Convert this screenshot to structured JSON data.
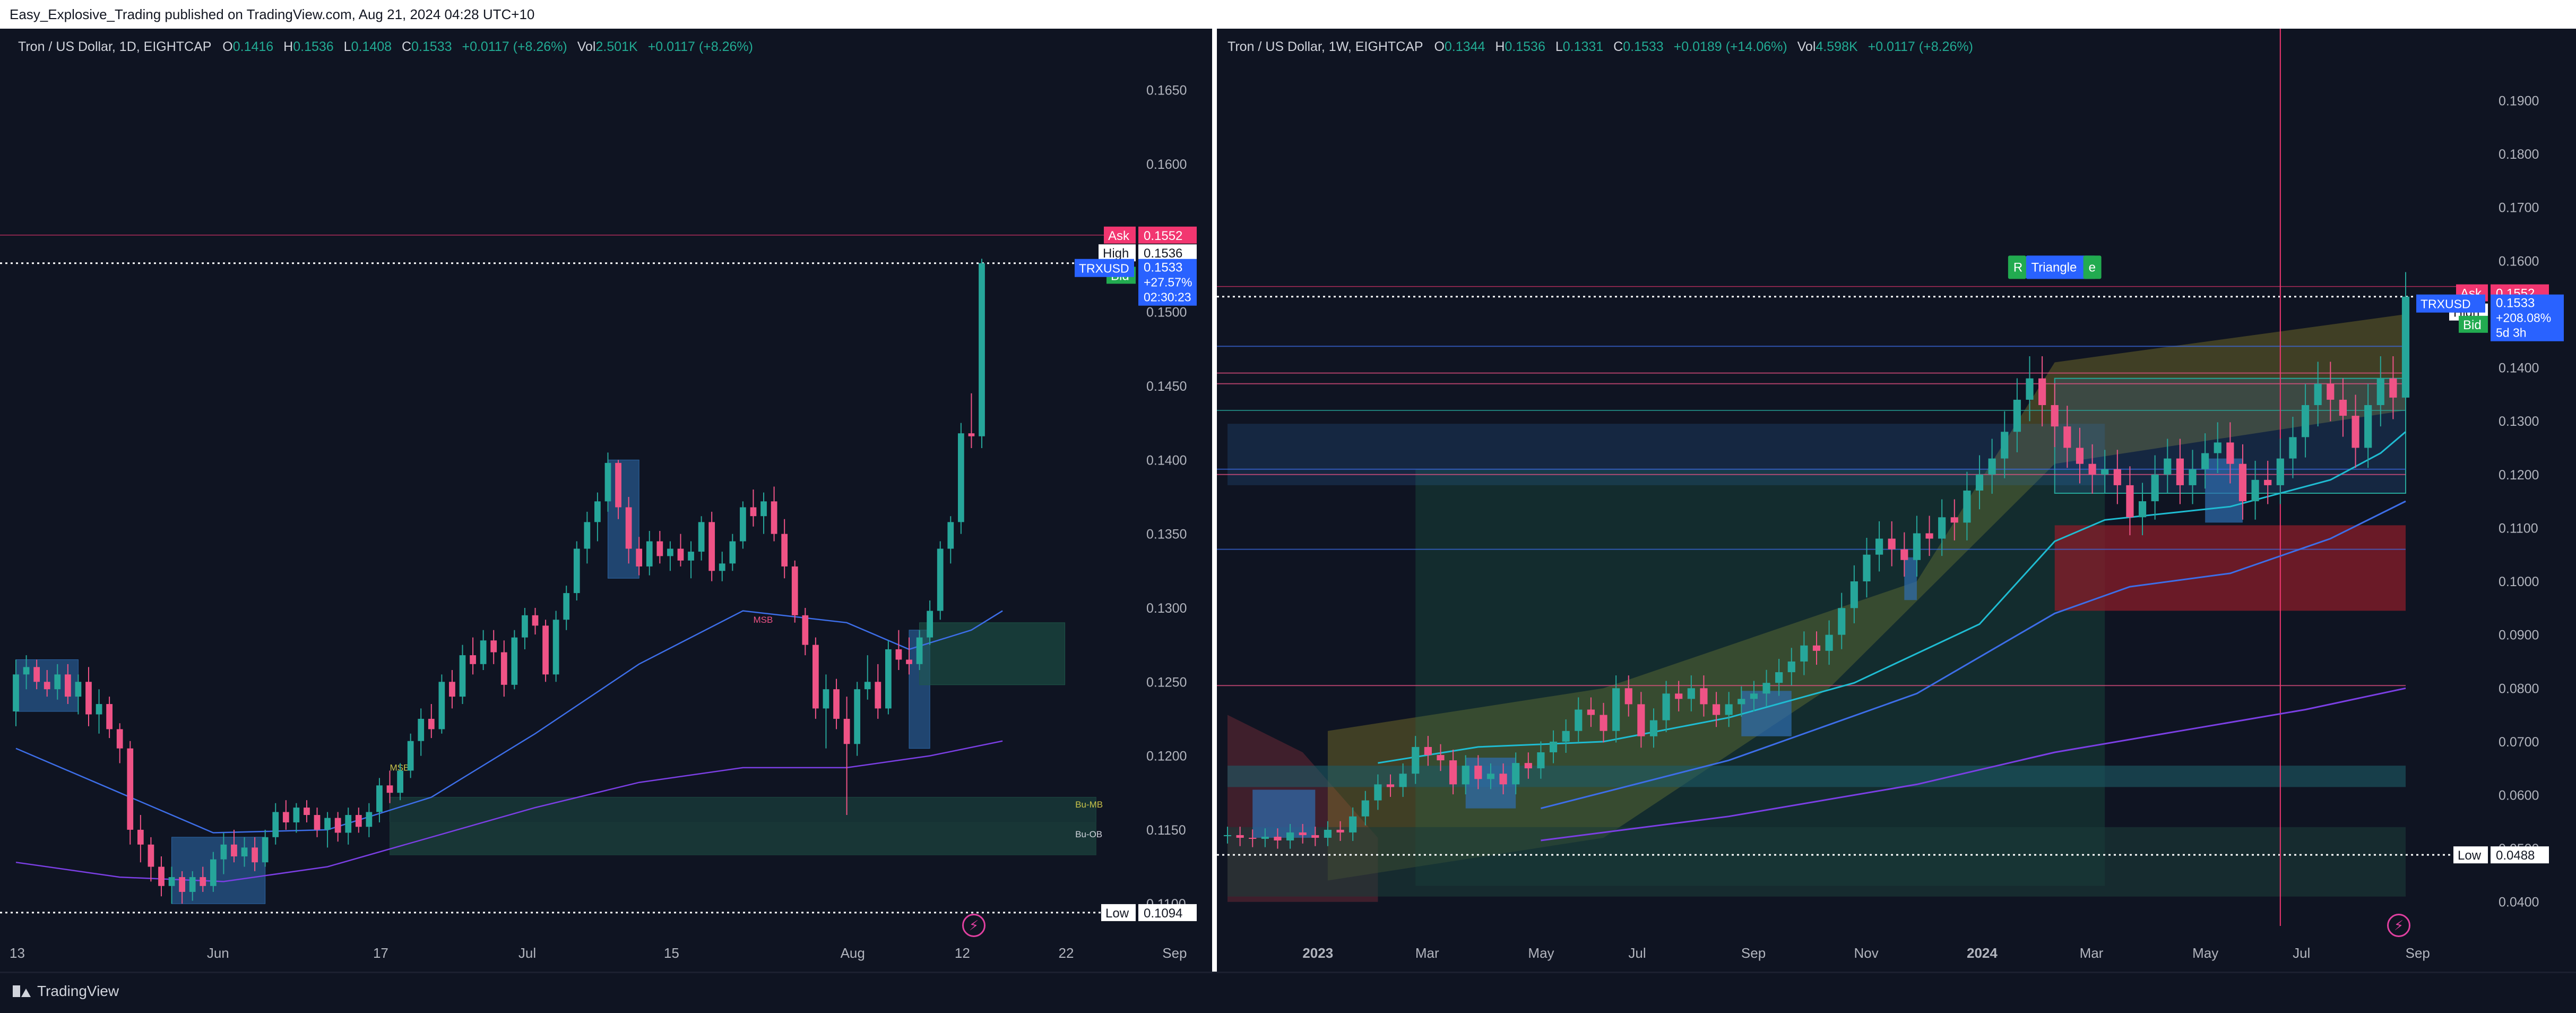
{
  "header": {
    "publisher_line": "Easy_Explosive_Trading published on TradingView.com, Aug 21, 2024 04:28 UTC+10"
  },
  "footer": {
    "brand": "TradingView"
  },
  "colors": {
    "background": "#0f1422",
    "up": "#26a69a",
    "down": "#ef5386",
    "ask": "#f23670",
    "bid": "#22ab50",
    "last": "#2962ff",
    "ema_fast": "#1fbcd2",
    "ema_mid": "#3d6ee8",
    "ema_slow": "#7b3fe4"
  },
  "chart_data": [
    {
      "type": "candlestick",
      "title": "Tron / US Dollar, 1D, EIGHTCAP",
      "legend": {
        "o_label": "O",
        "o": "0.1416",
        "h_label": "H",
        "h": "0.1536",
        "l_label": "L",
        "l": "0.1408",
        "c_label": "C",
        "c": "0.1533",
        "chg": "+0.0117 (+8.26%)",
        "vol_label": "Vol",
        "vol": "2.501K",
        "vol_chg": "+0.0117 (+8.26%)"
      },
      "ylim": [
        0.1085,
        0.167
      ],
      "y_ticks": [
        "0.1650",
        "0.1600",
        "0.1550",
        "0.1500",
        "0.1450",
        "0.1400",
        "0.1350",
        "0.1300",
        "0.1250",
        "0.1200",
        "0.1150",
        "0.1100"
      ],
      "x_ticks": [
        "13",
        "Jun",
        "17",
        "Jul",
        "15",
        "Aug",
        "12",
        "22",
        "Sep"
      ],
      "x_tick_days": [
        0,
        19,
        35,
        49,
        63,
        80,
        91,
        101,
        111
      ],
      "x_start_date": "May 13",
      "candles": [
        [
          0.123,
          0.1265,
          0.122,
          0.1255
        ],
        [
          0.1255,
          0.1268,
          0.1245,
          0.126
        ],
        [
          0.126,
          0.1265,
          0.1245,
          0.125
        ],
        [
          0.125,
          0.1258,
          0.124,
          0.1245
        ],
        [
          0.1245,
          0.1262,
          0.1238,
          0.1255
        ],
        [
          0.1255,
          0.1262,
          0.1235,
          0.124
        ],
        [
          0.124,
          0.1255,
          0.1228,
          0.125
        ],
        [
          0.125,
          0.126,
          0.122,
          0.1228
        ],
        [
          0.1228,
          0.1245,
          0.1215,
          0.1235
        ],
        [
          0.1235,
          0.124,
          0.1212,
          0.1218
        ],
        [
          0.1218,
          0.1222,
          0.1195,
          0.1205
        ],
        [
          0.1205,
          0.121,
          0.114,
          0.115
        ],
        [
          0.115,
          0.116,
          0.1128,
          0.114
        ],
        [
          0.114,
          0.1145,
          0.1115,
          0.1125
        ],
        [
          0.1125,
          0.1132,
          0.1105,
          0.1112
        ],
        [
          0.1112,
          0.1125,
          0.11,
          0.1118
        ],
        [
          0.1118,
          0.1122,
          0.11,
          0.1108
        ],
        [
          0.1108,
          0.1122,
          0.1102,
          0.1118
        ],
        [
          0.1118,
          0.1125,
          0.1108,
          0.1112
        ],
        [
          0.1112,
          0.1135,
          0.1108,
          0.113
        ],
        [
          0.113,
          0.1148,
          0.112,
          0.114
        ],
        [
          0.114,
          0.115,
          0.1128,
          0.1132
        ],
        [
          0.1132,
          0.1145,
          0.1125,
          0.1138
        ],
        [
          0.1138,
          0.1145,
          0.1122,
          0.1128
        ],
        [
          0.1128,
          0.115,
          0.1125,
          0.1145
        ],
        [
          0.1145,
          0.1168,
          0.114,
          0.1162
        ],
        [
          0.1162,
          0.117,
          0.115,
          0.1155
        ],
        [
          0.1155,
          0.1168,
          0.1148,
          0.1165
        ],
        [
          0.1165,
          0.117,
          0.1155,
          0.116
        ],
        [
          0.116,
          0.1165,
          0.1145,
          0.115
        ],
        [
          0.115,
          0.1162,
          0.1138,
          0.1158
        ],
        [
          0.1158,
          0.1162,
          0.1142,
          0.1148
        ],
        [
          0.1148,
          0.1165,
          0.114,
          0.116
        ],
        [
          0.116,
          0.1165,
          0.1148,
          0.1152
        ],
        [
          0.1152,
          0.1168,
          0.1145,
          0.1162
        ],
        [
          0.1162,
          0.1185,
          0.1155,
          0.118
        ],
        [
          0.118,
          0.119,
          0.1168,
          0.1175
        ],
        [
          0.1175,
          0.1195,
          0.117,
          0.119
        ],
        [
          0.119,
          0.1215,
          0.1185,
          0.121
        ],
        [
          0.121,
          0.1232,
          0.12,
          0.1225
        ],
        [
          0.1225,
          0.1235,
          0.1212,
          0.1218
        ],
        [
          0.1218,
          0.1255,
          0.1215,
          0.125
        ],
        [
          0.125,
          0.1258,
          0.1232,
          0.124
        ],
        [
          0.124,
          0.1275,
          0.1235,
          0.1268
        ],
        [
          0.1268,
          0.128,
          0.1255,
          0.1262
        ],
        [
          0.1262,
          0.1285,
          0.1258,
          0.1278
        ],
        [
          0.1278,
          0.1285,
          0.1262,
          0.127
        ],
        [
          0.127,
          0.1278,
          0.124,
          0.1248
        ],
        [
          0.1248,
          0.1285,
          0.1245,
          0.128
        ],
        [
          0.128,
          0.13,
          0.1272,
          0.1295
        ],
        [
          0.1295,
          0.13,
          0.1282,
          0.1288
        ],
        [
          0.1288,
          0.1292,
          0.125,
          0.1255
        ],
        [
          0.1255,
          0.1298,
          0.125,
          0.1292
        ],
        [
          0.1292,
          0.1315,
          0.1285,
          0.131
        ],
        [
          0.131,
          0.1345,
          0.1305,
          0.134
        ],
        [
          0.134,
          0.1365,
          0.133,
          0.1358
        ],
        [
          0.1358,
          0.1378,
          0.1345,
          0.1372
        ],
        [
          0.1372,
          0.1405,
          0.1365,
          0.1398
        ],
        [
          0.1398,
          0.14,
          0.136,
          0.1368
        ],
        [
          0.1368,
          0.1375,
          0.133,
          0.134
        ],
        [
          0.134,
          0.1348,
          0.1322,
          0.1328
        ],
        [
          0.1328,
          0.1352,
          0.1322,
          0.1345
        ],
        [
          0.1345,
          0.1352,
          0.133,
          0.1335
        ],
        [
          0.1335,
          0.1345,
          0.1325,
          0.134
        ],
        [
          0.134,
          0.135,
          0.1328,
          0.1332
        ],
        [
          0.1332,
          0.1345,
          0.132,
          0.1338
        ],
        [
          0.1338,
          0.1362,
          0.1332,
          0.1358
        ],
        [
          0.1358,
          0.1365,
          0.1318,
          0.1325
        ],
        [
          0.1325,
          0.1338,
          0.1318,
          0.133
        ],
        [
          0.133,
          0.135,
          0.1325,
          0.1345
        ],
        [
          0.1345,
          0.1372,
          0.134,
          0.1368
        ],
        [
          0.1368,
          0.138,
          0.1355,
          0.1362
        ],
        [
          0.1362,
          0.1378,
          0.135,
          0.1372
        ],
        [
          0.1372,
          0.1382,
          0.1345,
          0.135
        ],
        [
          0.135,
          0.136,
          0.132,
          0.1328
        ],
        [
          0.1328,
          0.1332,
          0.129,
          0.1295
        ],
        [
          0.1295,
          0.13,
          0.1268,
          0.1275
        ],
        [
          0.1275,
          0.128,
          0.1225,
          0.1232
        ],
        [
          0.1232,
          0.1255,
          0.1205,
          0.1245
        ],
        [
          0.1245,
          0.1252,
          0.1218,
          0.1225
        ],
        [
          0.1225,
          0.124,
          0.116,
          0.1208
        ],
        [
          0.1208,
          0.125,
          0.12,
          0.1245
        ],
        [
          0.1245,
          0.1268,
          0.1238,
          0.125
        ],
        [
          0.125,
          0.1262,
          0.1225,
          0.1232
        ],
        [
          0.1232,
          0.1278,
          0.1228,
          0.1272
        ],
        [
          0.1272,
          0.1285,
          0.1258,
          0.1265
        ],
        [
          0.1265,
          0.128,
          0.1255,
          0.1262
        ],
        [
          0.1262,
          0.1285,
          0.1258,
          0.128
        ],
        [
          0.128,
          0.1305,
          0.1275,
          0.1298
        ],
        [
          0.1298,
          0.1345,
          0.1292,
          0.134
        ],
        [
          0.134,
          0.1362,
          0.133,
          0.1358
        ],
        [
          0.1358,
          0.1425,
          0.135,
          0.1418
        ],
        [
          0.1418,
          0.1445,
          0.1408,
          0.1416
        ],
        [
          0.1416,
          0.1536,
          0.1408,
          0.1533
        ]
      ],
      "ema_fast": [
        [
          0,
          0.1205
        ],
        [
          10,
          0.1175
        ],
        [
          19,
          0.1148
        ],
        [
          30,
          0.115
        ],
        [
          40,
          0.1172
        ],
        [
          50,
          0.1215
        ],
        [
          60,
          0.1262
        ],
        [
          70,
          0.1298
        ],
        [
          80,
          0.129
        ],
        [
          86,
          0.1272
        ],
        [
          92,
          0.1285
        ],
        [
          95,
          0.1298
        ]
      ],
      "ema_slow": [
        [
          0,
          0.1128
        ],
        [
          10,
          0.1118
        ],
        [
          20,
          0.1115
        ],
        [
          30,
          0.1125
        ],
        [
          40,
          0.1145
        ],
        [
          50,
          0.1165
        ],
        [
          60,
          0.1182
        ],
        [
          70,
          0.1192
        ],
        [
          80,
          0.1192
        ],
        [
          88,
          0.12
        ],
        [
          95,
          0.121
        ]
      ],
      "zones": [
        {
          "x0": 15,
          "x1": 24,
          "y0": 0.11,
          "y1": 0.1145,
          "color": "#2f6db0"
        },
        {
          "x0": 0,
          "x1": 6,
          "y0": 0.123,
          "y1": 0.1265,
          "color": "#2f6db0"
        },
        {
          "x0": 57,
          "x1": 60,
          "y0": 0.132,
          "y1": 0.14,
          "color": "#2f6db0"
        },
        {
          "x0": 86,
          "x1": 88,
          "y0": 0.1205,
          "y1": 0.1285,
          "color": "#2f6db0"
        },
        {
          "x0": 87,
          "x1": 101,
          "y0": 0.1248,
          "y1": 0.129,
          "color": "#1f5a4a"
        },
        {
          "x0": 36,
          "x1": 104,
          "y0": 0.1133,
          "y1": 0.1172,
          "color": "#1e4b44"
        },
        {
          "x0": 36,
          "x1": 104,
          "y0": 0.1133,
          "y1": 0.1155,
          "color": "#1b3a38"
        }
      ],
      "zone_labels": [
        {
          "text": "MSB",
          "x": 36,
          "y": 0.119,
          "color": "#c9c34a"
        },
        {
          "text": "MSB",
          "x": 71,
          "y": 0.129,
          "color": "#ef5386"
        },
        {
          "text": "Bu-MB",
          "x": 102,
          "y": 0.1165,
          "color": "#c9c34a"
        },
        {
          "text": "Bu-OB",
          "x": 102,
          "y": 0.1145,
          "color": "#d1d4dc"
        }
      ],
      "price_tags": {
        "ask": {
          "label": "Ask",
          "value": "0.1552",
          "y": 0.1552
        },
        "high": {
          "label": "High",
          "value": "0.1536",
          "y": 0.154
        },
        "bid": {
          "label": "Bid",
          "value": "0.1533",
          "y": 0.1527
        },
        "last": {
          "label": "TRXUSD",
          "value": "0.1533",
          "extra1": "+27.57%",
          "extra2": "02:30:23",
          "y": 0.1533
        },
        "low": {
          "label": "Low",
          "value": "0.1094",
          "y": 0.1094
        }
      }
    },
    {
      "type": "candlestick",
      "title": "Tron / US Dollar, 1W, EIGHTCAP",
      "legend": {
        "o_label": "O",
        "o": "0.1344",
        "h_label": "H",
        "h": "0.1536",
        "l_label": "L",
        "l": "0.1331",
        "c_label": "C",
        "c": "0.1533",
        "chg": "+0.0189 (+14.06%)",
        "vol_label": "Vol",
        "vol": "4.598K",
        "vol_chg": "+0.0117 (+8.26%)"
      },
      "ylim": [
        0.0355,
        0.1975
      ],
      "y_ticks": [
        "0.1900",
        "0.1800",
        "0.1700",
        "0.1600",
        "0.1500",
        "0.1400",
        "0.1300",
        "0.1200",
        "0.1100",
        "0.1000",
        "0.0900",
        "0.0800",
        "0.0700",
        "0.0600",
        "0.0500",
        "0.0400"
      ],
      "x_ticks": [
        "2023",
        "Mar",
        "May",
        "Jul",
        "Sep",
        "Nov",
        "2024",
        "Mar",
        "May",
        "Jul",
        "Sep"
      ],
      "x_tick_weeks": [
        7,
        16,
        25,
        33,
        42,
        51,
        60,
        69,
        78,
        86,
        95
      ],
      "x_start_week": "Nov 2022",
      "annotations": [
        {
          "text": "Triangle",
          "x": 66.5,
          "y": 0.1588,
          "color": "#2962ff"
        },
        {
          "text": "R",
          "x": 63.0,
          "y": 0.1588,
          "color": "#22ab50"
        },
        {
          "text": "e",
          "x": 69.0,
          "y": 0.1588,
          "color": "#22ab50"
        }
      ],
      "closes": [
        0.0525,
        0.052,
        0.0518,
        0.0522,
        0.0515,
        0.053,
        0.0525,
        0.052,
        0.0535,
        0.053,
        0.056,
        0.059,
        0.062,
        0.0615,
        0.064,
        0.069,
        0.0675,
        0.0665,
        0.062,
        0.0655,
        0.063,
        0.064,
        0.062,
        0.066,
        0.065,
        0.068,
        0.07,
        0.072,
        0.076,
        0.075,
        0.072,
        0.08,
        0.077,
        0.071,
        0.074,
        0.079,
        0.078,
        0.08,
        0.077,
        0.075,
        0.077,
        0.078,
        0.079,
        0.081,
        0.083,
        0.085,
        0.088,
        0.087,
        0.09,
        0.095,
        0.1,
        0.105,
        0.108,
        0.106,
        0.104,
        0.109,
        0.108,
        0.112,
        0.111,
        0.117,
        0.12,
        0.123,
        0.128,
        0.134,
        0.138,
        0.133,
        0.129,
        0.125,
        0.122,
        0.12,
        0.121,
        0.118,
        0.112,
        0.115,
        0.12,
        0.123,
        0.118,
        0.121,
        0.124,
        0.126,
        0.122,
        0.115,
        0.119,
        0.118,
        0.123,
        0.127,
        0.133,
        0.137,
        0.134,
        0.131,
        0.125,
        0.133,
        0.138,
        0.1344,
        0.1533
      ],
      "ema_fast": [
        [
          12,
          0.066
        ],
        [
          20,
          0.069
        ],
        [
          30,
          0.07
        ],
        [
          40,
          0.0745
        ],
        [
          50,
          0.081
        ],
        [
          60,
          0.092
        ],
        [
          66,
          0.1075
        ],
        [
          70,
          0.1115
        ],
        [
          76,
          0.113
        ],
        [
          80,
          0.114
        ],
        [
          88,
          0.119
        ],
        [
          92,
          0.124
        ],
        [
          94,
          0.128
        ]
      ],
      "ema_mid": [
        [
          25,
          0.0575
        ],
        [
          40,
          0.0665
        ],
        [
          55,
          0.079
        ],
        [
          66,
          0.094
        ],
        [
          72,
          0.099
        ],
        [
          80,
          0.1015
        ],
        [
          88,
          0.108
        ],
        [
          94,
          0.115
        ]
      ],
      "ema_slow": [
        [
          25,
          0.0515
        ],
        [
          40,
          0.056
        ],
        [
          55,
          0.062
        ],
        [
          66,
          0.068
        ],
        [
          76,
          0.072
        ],
        [
          86,
          0.076
        ],
        [
          94,
          0.08
        ]
      ],
      "price_tags": {
        "ask": {
          "label": "Ask",
          "value": "0.1552",
          "y": 0.1552
        },
        "high": {
          "label": "High",
          "value": "0.1536",
          "y": 0.1536
        },
        "bid": {
          "label": "Bid",
          "value": "0.1533",
          "y": 0.1517
        },
        "last": {
          "label": "TRXUSD",
          "value": "0.1533",
          "extra1": "+208.08%",
          "extra2": "5d 3h",
          "y": 0.1533
        },
        "low": {
          "label": "Low",
          "value": "0.0488",
          "y": 0.0488
        }
      }
    }
  ]
}
